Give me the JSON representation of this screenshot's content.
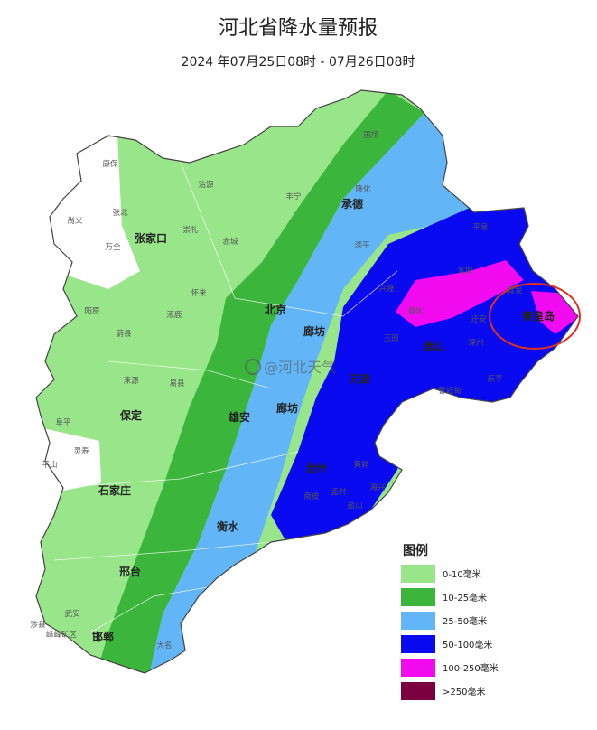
{
  "header": {
    "title": "河北省降水量预报",
    "subtitle": "2024 年07月25日08时 - 07月26日08时"
  },
  "legend": {
    "title": "图例",
    "items": [
      {
        "label": "0-10毫米",
        "color": "#99e68a"
      },
      {
        "label": "10-25毫米",
        "color": "#3cb53c"
      },
      {
        "label": "25-50毫米",
        "color": "#62b6f7"
      },
      {
        "label": "50-100毫米",
        "color": "#0a0af0"
      },
      {
        "label": "100-250毫米",
        "color": "#f20af0"
      },
      {
        "label": ">250毫米",
        "color": "#7a0040"
      }
    ]
  },
  "cities": [
    "张家口",
    "北京",
    "承德",
    "廊坊",
    "唐山",
    "秦皇岛",
    "天津",
    "保定",
    "雄安",
    "廊坊",
    "石家庄",
    "沧州",
    "衡水",
    "邢台",
    "邯郸"
  ],
  "counties": [
    "围场",
    "丰宁",
    "隆化",
    "康保",
    "沽源",
    "张北",
    "尚义",
    "万全",
    "崇礼",
    "赤城",
    "滦平",
    "平泉",
    "兴隆",
    "宽城",
    "青龙",
    "怀来",
    "涿鹿",
    "蔚县",
    "阳原",
    "涞源",
    "易县",
    "迁安",
    "滦州",
    "乐亭",
    "曹妃甸",
    "玉田",
    "遵化",
    "阜平",
    "灵寿",
    "平山",
    "黄骅",
    "海兴",
    "盐山",
    "孟村",
    "南皮",
    "武安",
    "涉县",
    "峰峰矿区",
    "大名"
  ],
  "watermark": "@河北天气"
}
